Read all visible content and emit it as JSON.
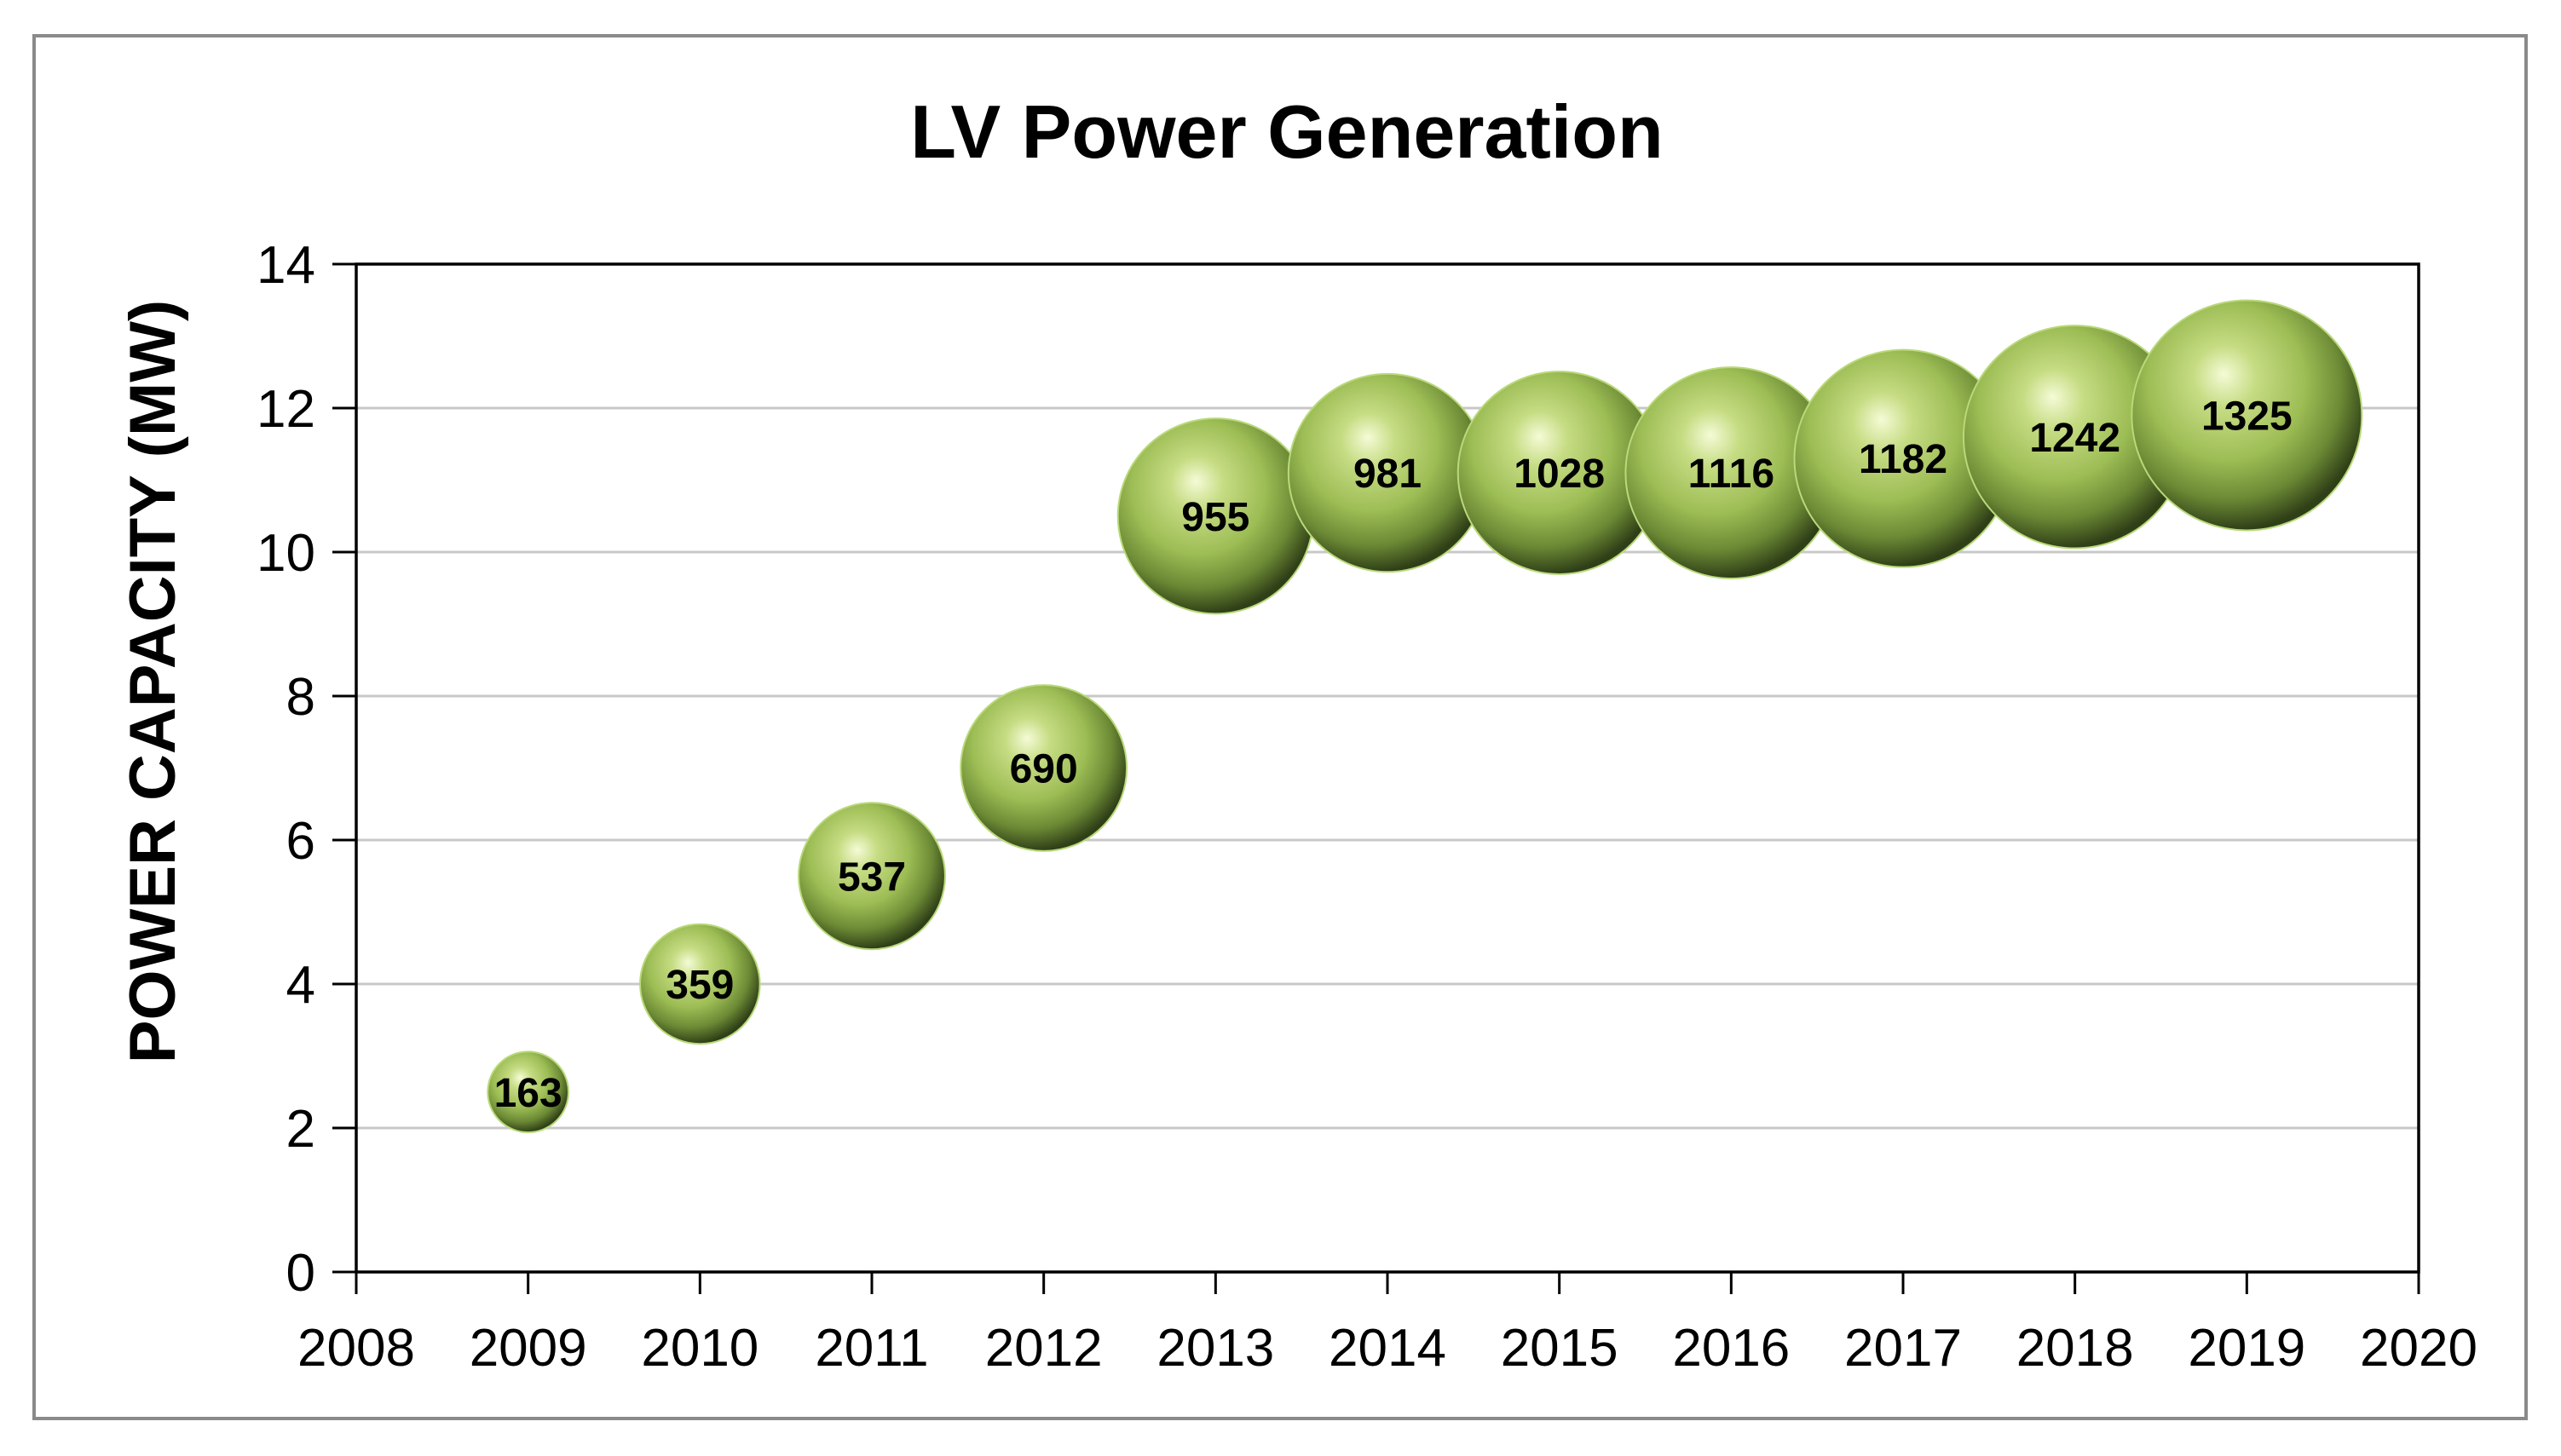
{
  "chart_data": {
    "type": "bubble",
    "title": "LV Power Generation",
    "xlabel": "",
    "ylabel": "POWER CAPACITY (MW)",
    "xlim": [
      2008,
      2020
    ],
    "ylim": [
      0,
      14
    ],
    "x_ticks": [
      2008,
      2009,
      2010,
      2011,
      2012,
      2013,
      2014,
      2015,
      2016,
      2017,
      2018,
      2019,
      2020
    ],
    "y_ticks": [
      0,
      2,
      4,
      6,
      8,
      10,
      12,
      14
    ],
    "grid": "horizontal",
    "legend": "none",
    "bubble_color": "#9dbd55",
    "points": [
      {
        "x": 2009,
        "y": 2.5,
        "size": 163,
        "label": "163"
      },
      {
        "x": 2010,
        "y": 4.0,
        "size": 359,
        "label": "359"
      },
      {
        "x": 2011,
        "y": 5.5,
        "size": 537,
        "label": "537"
      },
      {
        "x": 2012,
        "y": 7.0,
        "size": 690,
        "label": "690"
      },
      {
        "x": 2013,
        "y": 10.5,
        "size": 955,
        "label": "955"
      },
      {
        "x": 2014,
        "y": 11.1,
        "size": 981,
        "label": "981"
      },
      {
        "x": 2015,
        "y": 11.1,
        "size": 1028,
        "label": "1028"
      },
      {
        "x": 2016,
        "y": 11.1,
        "size": 1116,
        "label": "1116"
      },
      {
        "x": 2017,
        "y": 11.3,
        "size": 1182,
        "label": "1182"
      },
      {
        "x": 2018,
        "y": 11.6,
        "size": 1242,
        "label": "1242"
      },
      {
        "x": 2019,
        "y": 11.9,
        "size": 1325,
        "label": "1325"
      }
    ]
  }
}
